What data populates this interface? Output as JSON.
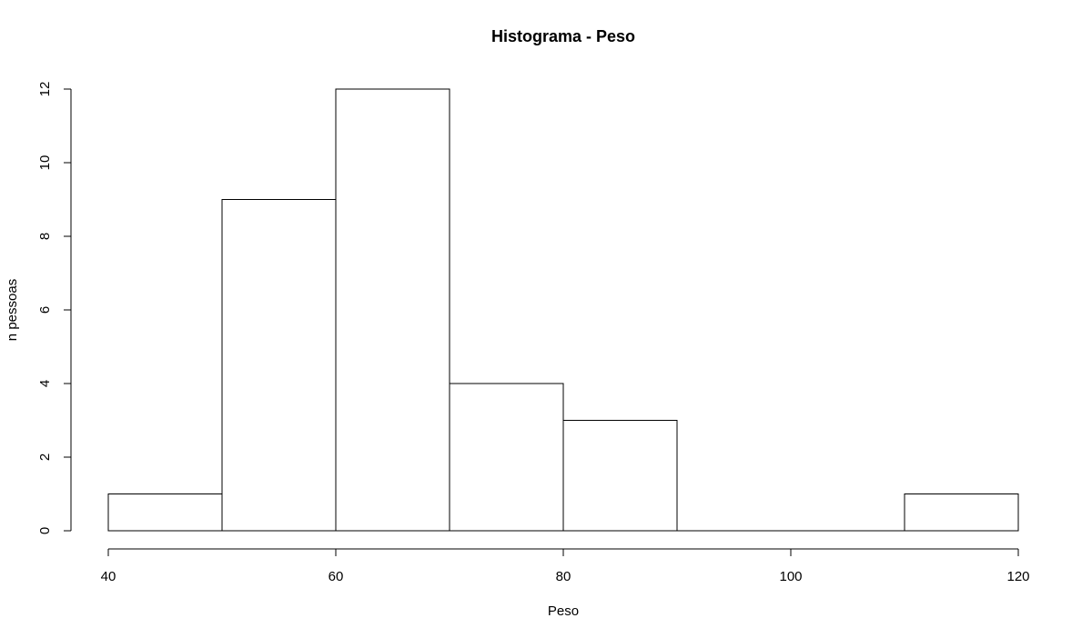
{
  "chart_data": {
    "type": "bar",
    "title": "Histograma - Peso",
    "xlabel": "Peso",
    "ylabel": "n pessoas",
    "bin_edges": [
      40,
      50,
      60,
      70,
      80,
      90,
      100,
      110,
      120
    ],
    "values": [
      1,
      9,
      12,
      4,
      3,
      0,
      0,
      1
    ],
    "xlim": [
      40,
      120
    ],
    "ylim": [
      0,
      12
    ],
    "x_ticks": [
      40,
      60,
      80,
      100,
      120
    ],
    "y_ticks": [
      0,
      2,
      4,
      6,
      8,
      10,
      12
    ],
    "grid": false,
    "bar_fill": "#ffffff",
    "bar_stroke": "#000000"
  }
}
